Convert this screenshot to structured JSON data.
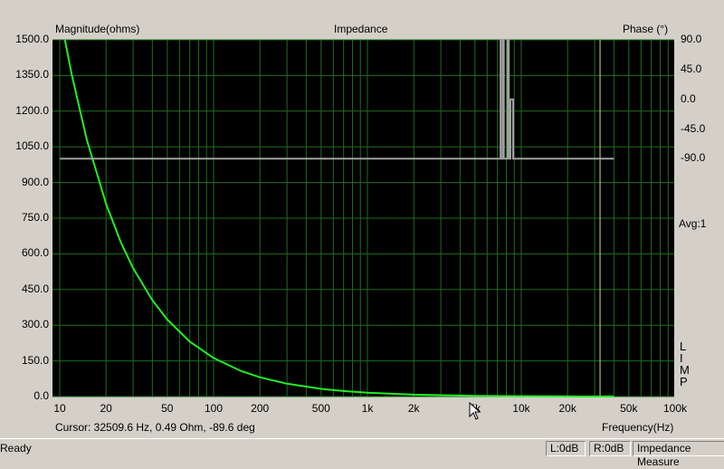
{
  "chart": {
    "title": "Impedance",
    "left_axis_label": "Magnitude(ohms)",
    "right_axis_label": "Phase (°)",
    "x_axis_label": "Frequency(Hz)",
    "avg_label": "Avg:1",
    "mode_letters": [
      "L",
      "I",
      "M",
      "P"
    ],
    "cursor_readout": "Cursor: 32509.6 Hz, 0.49 Ohm, -89.6 deg"
  },
  "chart_data": {
    "type": "line",
    "x_scale": "log",
    "xlim": [
      10,
      100000
    ],
    "ylim": [
      0,
      1500
    ],
    "y2lim": [
      -450,
      90
    ],
    "grid": true,
    "y_ticks": [
      "1500.0",
      "1350.0",
      "1200.0",
      "1050.0",
      "900.0",
      "750.0",
      "600.0",
      "450.0",
      "300.0",
      "150.0",
      "0.0"
    ],
    "y2_ticks": [
      "90.0",
      "45.0",
      "0.0",
      "-45.0",
      "-90.0"
    ],
    "x_ticks": [
      "10",
      "20",
      "50",
      "100",
      "200",
      "500",
      "1k",
      "2k",
      "5k",
      "10k",
      "20k",
      "50k",
      "100k"
    ],
    "x_tick_values": [
      10,
      20,
      50,
      100,
      200,
      500,
      1000,
      2000,
      5000,
      10000,
      20000,
      50000,
      100000
    ],
    "cursor_frequency": 32509.6,
    "series": [
      {
        "name": "Magnitude",
        "axis": "left",
        "color": "#22ee22",
        "x": [
          10.8,
          12,
          15,
          20,
          25,
          30,
          40,
          50,
          70,
          100,
          150,
          200,
          300,
          500,
          700,
          1000,
          2000,
          5000,
          8000,
          20000,
          40000
        ],
        "y": [
          1500,
          1350,
          1080,
          810,
          648,
          540,
          405,
          324,
          231,
          162,
          108,
          81,
          54,
          32.4,
          23.1,
          16.2,
          8.1,
          3.2,
          2.0,
          0.8,
          0.4
        ]
      },
      {
        "name": "Phase",
        "axis": "right",
        "color": "#a0a0a0",
        "x": [
          10,
          7330,
          7330,
          7400,
          7400,
          7630,
          7630,
          7700,
          7700,
          8160,
          8160,
          8300,
          8300,
          8500,
          8500,
          8850,
          8850,
          40000
        ],
        "y": [
          -90,
          -90,
          90,
          90,
          -90,
          -90,
          90,
          90,
          -90,
          -90,
          90,
          90,
          -90,
          -90,
          0,
          0,
          -90,
          -90
        ]
      }
    ]
  },
  "status_bar": {
    "status": "Ready",
    "left_level": "L:0dB",
    "right_level": "R:0dB",
    "mode": "Impedance Measure"
  }
}
